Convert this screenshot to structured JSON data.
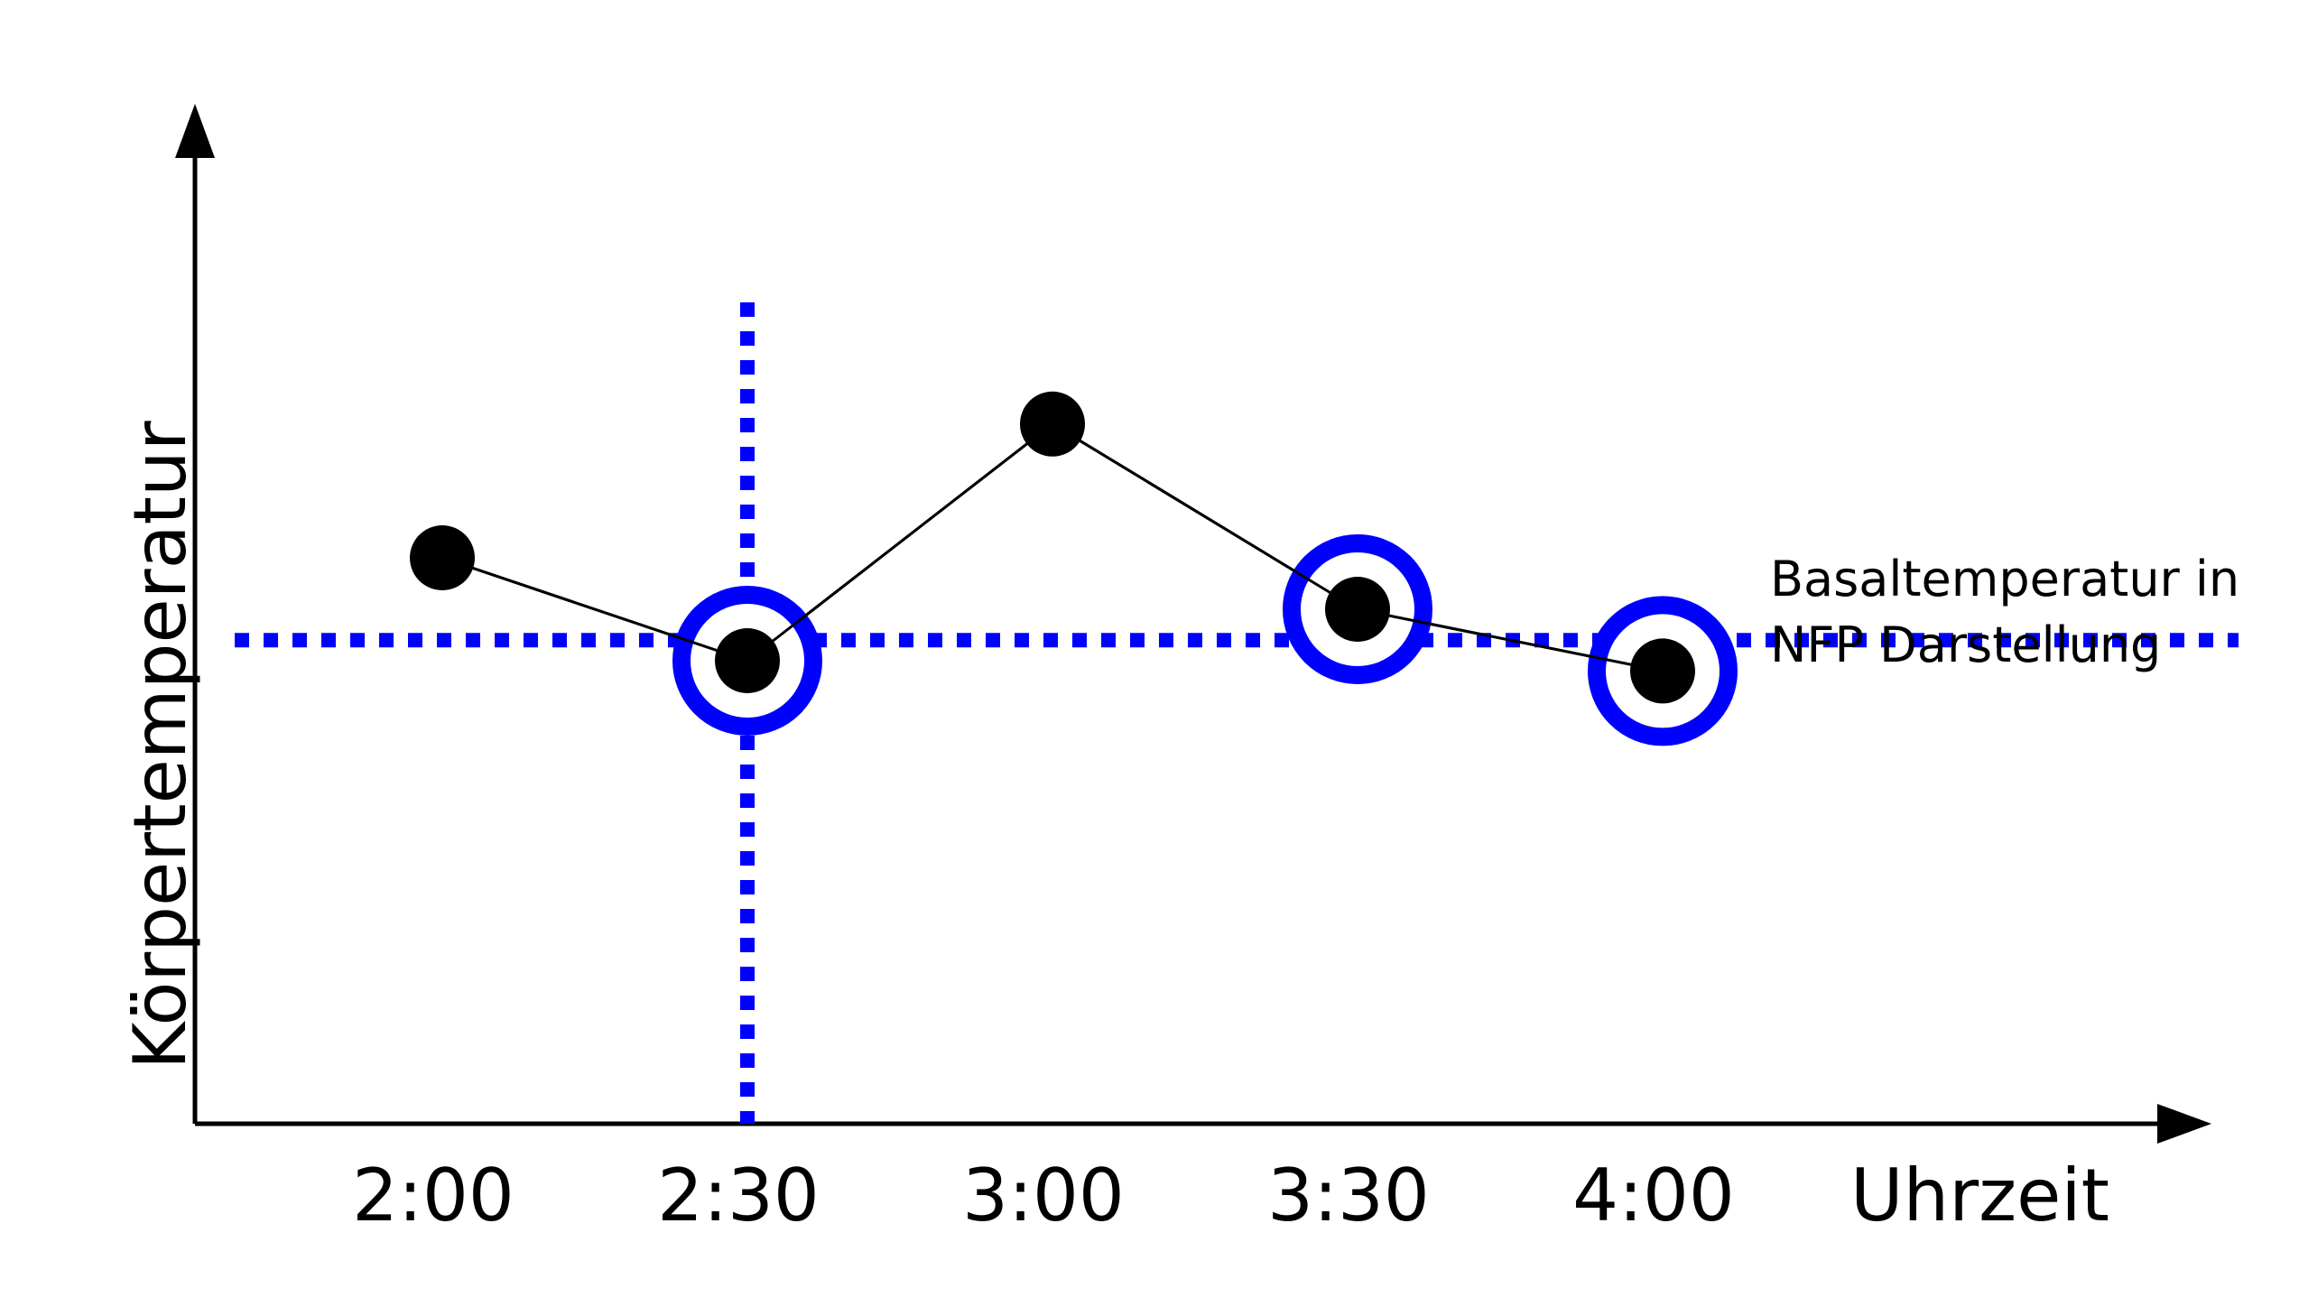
{
  "chart_data": {
    "type": "line",
    "xlabel": "Uhrzeit",
    "ylabel": "Körpertemperatur",
    "categories": [
      "2:00",
      "2:30",
      "3:00",
      "3:30",
      "4:00"
    ],
    "x": [
      "2:00",
      "2:30",
      "3:00",
      "3:30",
      "4:00"
    ],
    "values": [
      0.55,
      0.45,
      0.68,
      0.5,
      0.44
    ],
    "highlighted_points": [
      "2:30",
      "3:30",
      "4:00"
    ],
    "reference_line": {
      "orientation": "horizontal",
      "value": 0.47,
      "style": "dotted"
    },
    "reference_vline": {
      "orientation": "vertical",
      "x": "2:30",
      "style": "dotted"
    },
    "annotation": {
      "line1": "Basaltemperatur in",
      "line2": "NFP Darstellung"
    },
    "grid": false,
    "ylim": [
      0,
      1
    ],
    "colors": {
      "point": "#000000",
      "line": "#000000",
      "highlight": "#0000ff",
      "reference": "#0000ff"
    }
  }
}
